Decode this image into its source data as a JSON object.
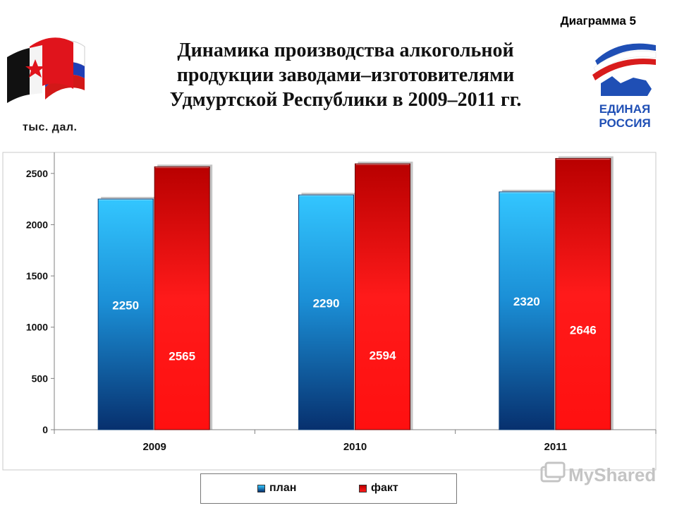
{
  "header": {
    "diagram_label": "Диаграмма 5",
    "title_lines": [
      "Динамика производства алкогольной",
      "продукции заводами–изготовителями",
      "Удмуртской Республики в 2009–2011 гг."
    ],
    "unit_label": "тыс. дал."
  },
  "logos": {
    "party_text_line1": "ЕДИНАЯ",
    "party_text_line2": "РОССИЯ",
    "watermark_text": "MyShared"
  },
  "colors": {
    "plan_light": "#33c6ff",
    "plan_dark": "#07306e",
    "fact_light": "#ff1a1a",
    "fact_dark": "#b80000",
    "axis": "#808080"
  },
  "chart_data": {
    "type": "bar",
    "categories": [
      "2009",
      "2010",
      "2011"
    ],
    "series": [
      {
        "name": "план",
        "values": [
          2250,
          2290,
          2320
        ]
      },
      {
        "name": "факт",
        "values": [
          2565,
          2594,
          2646
        ]
      }
    ],
    "ylabel": "тыс. дал.",
    "xlabel": "",
    "ylim": [
      0,
      2650
    ],
    "yticks": [
      0,
      500,
      1000,
      1500,
      2000,
      2500
    ],
    "grid": false,
    "legend_position": "bottom"
  }
}
